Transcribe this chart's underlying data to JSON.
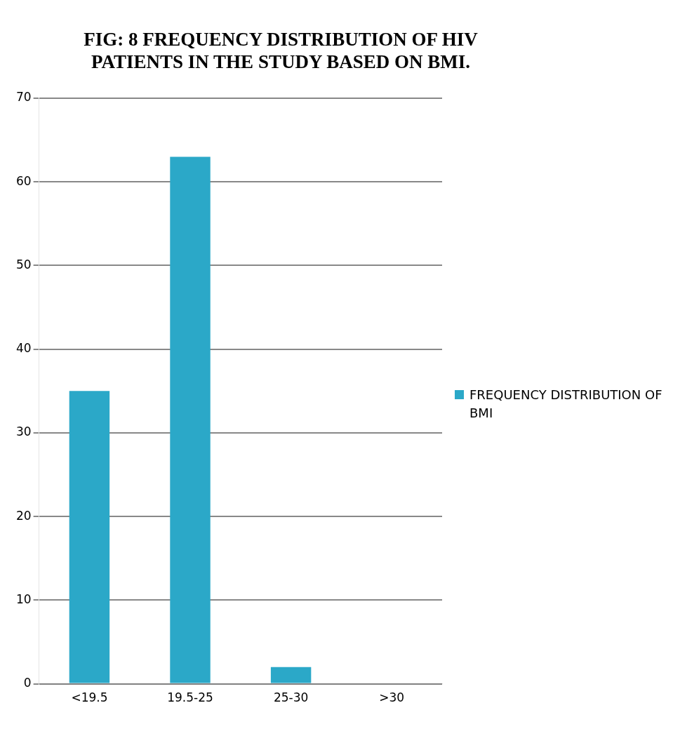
{
  "chart_data": {
    "type": "bar",
    "title": "FIG: 8 FREQUENCY DISTRIBUTION OF   HIV PATIENTS IN THE STUDY BASED ON BMI.",
    "categories": [
      "<19.5",
      "19.5-25",
      "25-30",
      ">30"
    ],
    "series": [
      {
        "name": "FREQUENCY DISTRIBUTION OF BMI",
        "color": "#2ba8c8",
        "values": [
          35,
          63,
          2,
          0
        ]
      }
    ],
    "ylim": [
      0,
      70
    ],
    "yticks": [
      0,
      10,
      20,
      30,
      40,
      50,
      60,
      70
    ],
    "grid": "y",
    "legend": "right"
  }
}
